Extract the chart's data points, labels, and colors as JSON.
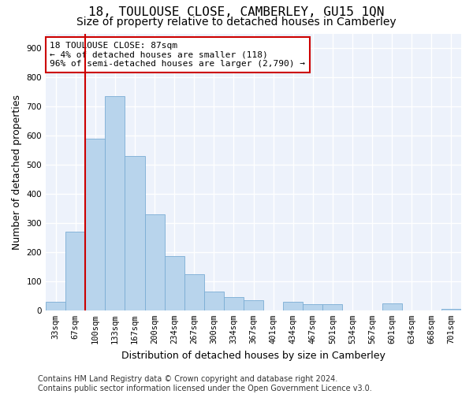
{
  "title": "18, TOULOUSE CLOSE, CAMBERLEY, GU15 1QN",
  "subtitle": "Size of property relative to detached houses in Camberley",
  "xlabel": "Distribution of detached houses by size in Camberley",
  "ylabel": "Number of detached properties",
  "footer_line1": "Contains HM Land Registry data © Crown copyright and database right 2024.",
  "footer_line2": "Contains public sector information licensed under the Open Government Licence v3.0.",
  "bar_labels": [
    "33sqm",
    "67sqm",
    "100sqm",
    "133sqm",
    "167sqm",
    "200sqm",
    "234sqm",
    "267sqm",
    "300sqm",
    "334sqm",
    "367sqm",
    "401sqm",
    "434sqm",
    "467sqm",
    "501sqm",
    "534sqm",
    "567sqm",
    "601sqm",
    "634sqm",
    "668sqm",
    "701sqm"
  ],
  "bar_values": [
    30,
    270,
    590,
    735,
    530,
    330,
    185,
    125,
    65,
    45,
    35,
    0,
    30,
    20,
    20,
    0,
    0,
    25,
    0,
    0,
    5
  ],
  "bar_color": "#b8d4ec",
  "bar_edge_color": "#7aadd4",
  "annotation_line1": "18 TOULOUSE CLOSE: 87sqm",
  "annotation_line2": "← 4% of detached houses are smaller (118)",
  "annotation_line3": "96% of semi-detached houses are larger (2,790) →",
  "vline_x_index": 1.5,
  "vline_color": "#cc0000",
  "annotation_box_facecolor": "#ffffff",
  "annotation_box_edgecolor": "#cc0000",
  "ylim": [
    0,
    950
  ],
  "yticks": [
    0,
    100,
    200,
    300,
    400,
    500,
    600,
    700,
    800,
    900
  ],
  "background_color": "#edf2fb",
  "grid_color": "#ffffff",
  "title_fontsize": 11.5,
  "subtitle_fontsize": 10,
  "axis_label_fontsize": 9,
  "tick_fontsize": 7.5,
  "footer_fontsize": 7
}
